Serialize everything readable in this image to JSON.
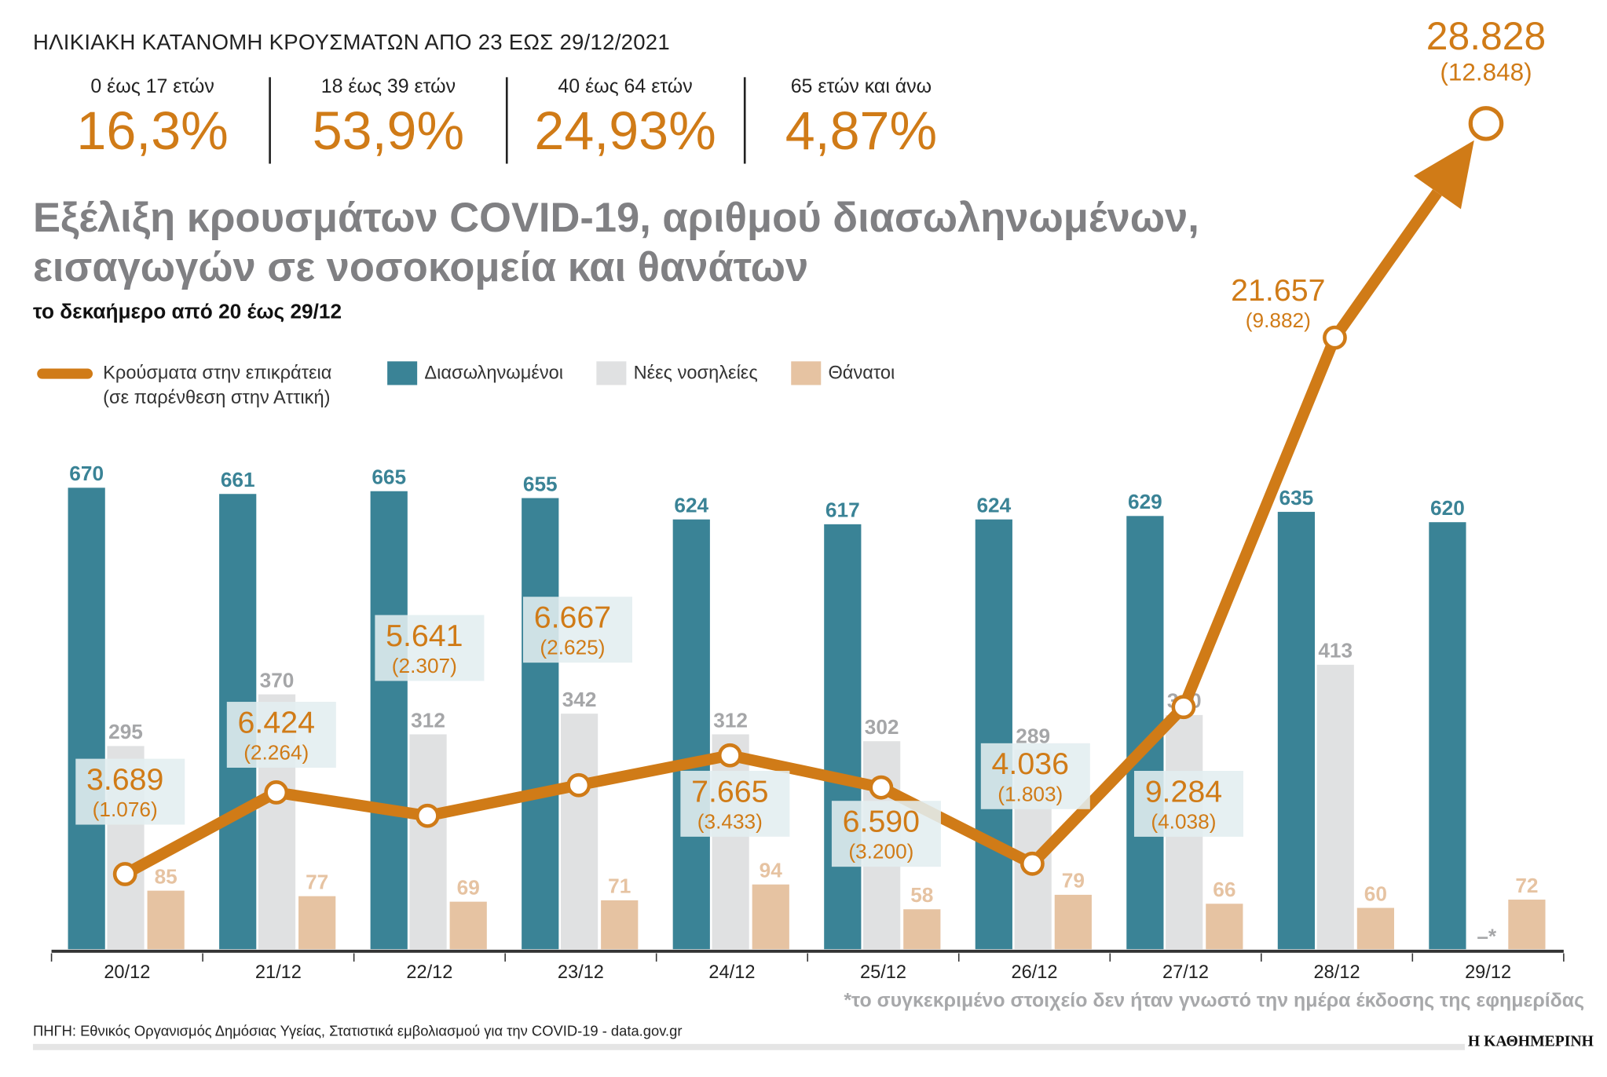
{
  "age_distribution": {
    "title": "ΗΛΙΚΙΑΚΗ ΚΑΤΑΝΟΜΗ ΚΡΟΥΣΜΑΤΩΝ ΑΠΟ 23 ΕΩΣ 29/12/2021",
    "groups": [
      {
        "label": "0 έως 17 ετών",
        "value": "16,3%"
      },
      {
        "label": "18 έως 39 ετών",
        "value": "53,9%"
      },
      {
        "label": "40 έως 64 ετών",
        "value": "24,93%"
      },
      {
        "label": "65 ετών και άνω",
        "value": "4,87%"
      }
    ]
  },
  "chart_data": {
    "type": "bar",
    "title_line1": "Εξέλιξη κρουσμάτων COVID-19, αριθμού διασωληνωμένων,",
    "title_line2": "εισαγωγών σε νοσοκομεία και θανάτων",
    "subtitle": "το δεκαήμερο από 20 έως 29/12",
    "legend": {
      "cases": "Κρούσματα στην επικράτεια",
      "cases_sub": "(σε παρένθεση στην Αττική)",
      "intubated": "Διασωληνωμένοι",
      "admissions": "Νέες νοσηλείες",
      "deaths": "Θάνατοι"
    },
    "categories": [
      "20/12",
      "21/12",
      "22/12",
      "23/12",
      "24/12",
      "25/12",
      "26/12",
      "27/12",
      "28/12",
      "29/12"
    ],
    "series": [
      {
        "name": "Διασωληνωμένοι",
        "type": "bar",
        "color": "#3a8396",
        "values": [
          670,
          661,
          665,
          655,
          624,
          617,
          624,
          629,
          635,
          620
        ]
      },
      {
        "name": "Νέες νοσηλείες",
        "type": "bar",
        "color": "#e0e1e2",
        "values": [
          295,
          370,
          312,
          342,
          312,
          302,
          289,
          340,
          413,
          null
        ],
        "missing_label": "–*"
      },
      {
        "name": "Θάνατοι",
        "type": "bar",
        "color": "#e6c3a2",
        "values": [
          85,
          77,
          69,
          71,
          94,
          58,
          79,
          66,
          60,
          72
        ]
      },
      {
        "name": "Κρούσματα στην επικράτεια",
        "type": "line",
        "color": "#d07b17",
        "values": [
          3689,
          6424,
          5641,
          6667,
          7665,
          6590,
          4036,
          9284,
          21657,
          28828
        ],
        "labels": [
          "3.689",
          "6.424",
          "5.641",
          "6.667",
          "7.665",
          "6.590",
          "4.036",
          "9.284",
          "21.657",
          "28.828"
        ],
        "attica": [
          "(1.076)",
          "(2.264)",
          "(2.307)",
          "(2.625)",
          "(3.433)",
          "(3.200)",
          "(1.803)",
          "(4.038)",
          "(9.882)",
          "(12.848)"
        ]
      }
    ],
    "footnote": "*το συγκεκριμένο στοιχείο δεν ήταν γνωστό την ημέρα έκδοσης της εφημερίδας"
  },
  "source": "ΠΗΓΗ: Εθνικός Οργανισμός Δημόσιας Υγείας, Στατιστικά εμβολιασμού για την COVID-19 - data.gov.gr",
  "brand": "Η ΚΑΘΗΜΕΡΙΝΗ"
}
